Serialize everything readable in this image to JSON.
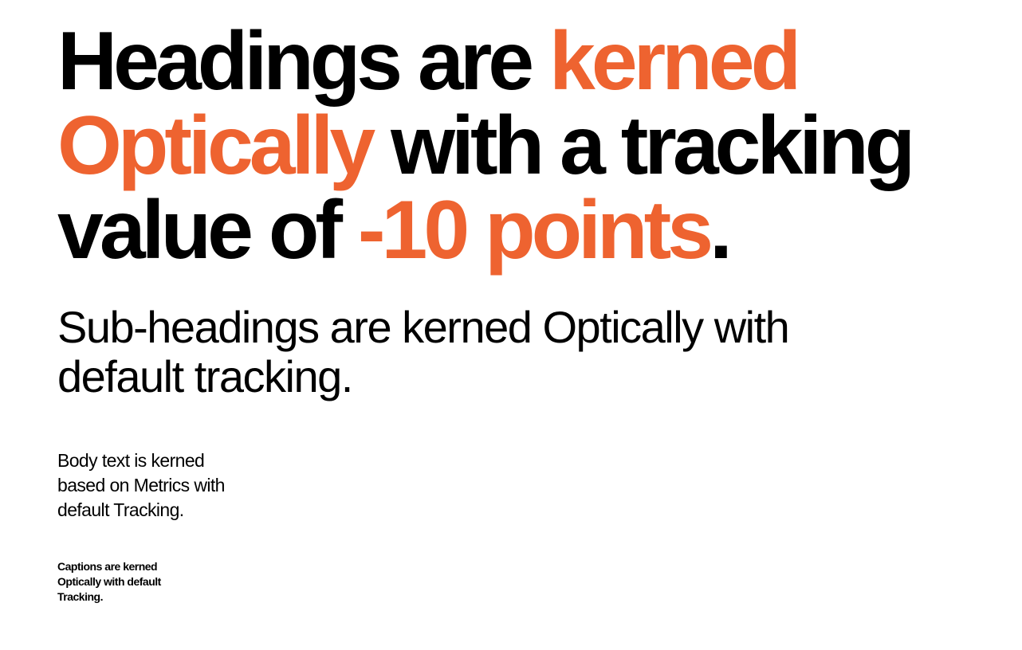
{
  "colors": {
    "accent": "#ee6330",
    "text": "#000000",
    "background": "#ffffff"
  },
  "heading": {
    "line1_plain": "Headings are ",
    "line1_accent": "kerned",
    "line2_accent": "Optically",
    "line2_plain": " with a tracking",
    "line3_plain": "value of ",
    "line3_accent": "-10 points",
    "line3_end": "."
  },
  "subheading": {
    "line1": "Sub-headings are kerned Optically with",
    "line2": "default tracking."
  },
  "body": {
    "line1": "Body text is kerned",
    "line2": "based on Metrics with",
    "line3": "default Tracking."
  },
  "caption": {
    "line1": "Captions are kerned",
    "line2": "Optically with default",
    "line3": "Tracking."
  }
}
